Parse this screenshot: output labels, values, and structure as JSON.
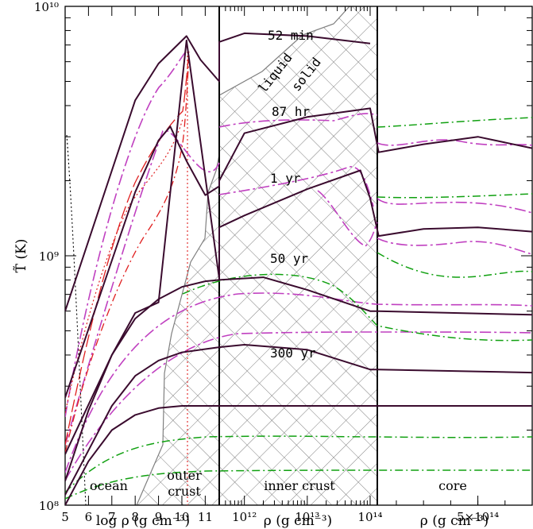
{
  "chart_data": {
    "type": "line",
    "title": "",
    "ylabel": "T̃ (K)",
    "yscale": "log",
    "ylim": [
      100000000.0,
      10000000000.0
    ],
    "y_ticks": [
      {
        "value": 100000000.0,
        "label": "10⁸"
      },
      {
        "value": 1000000000.0,
        "label": "10⁹"
      },
      {
        "value": 10000000000.0,
        "label": "10¹⁰"
      }
    ],
    "panels": [
      {
        "name": "ocean-outer",
        "xlabel": "log ρ (g cm⁻³)",
        "xscale": "linear",
        "xlim": [
          5,
          11.6
        ],
        "ticks": [
          {
            "value": 5,
            "label": "5"
          },
          {
            "value": 6,
            "label": "6"
          },
          {
            "value": 7,
            "label": "7"
          },
          {
            "value": 8,
            "label": "8"
          },
          {
            "value": 9,
            "label": "9"
          },
          {
            "value": 10,
            "label": "10"
          },
          {
            "value": 11,
            "label": "11"
          }
        ]
      },
      {
        "name": "inner-crust",
        "xlabel": "ρ (g cm⁻³)",
        "xscale": "log",
        "xlim": [
          398000000000.0,
          130000000000000.0
        ],
        "ticks": [
          {
            "value": 1000000000000.0,
            "label": "10¹²"
          },
          {
            "value": 10000000000000.0,
            "label": "10¹³"
          },
          {
            "value": 100000000000000.0,
            "label": "10¹⁴"
          }
        ]
      },
      {
        "name": "core",
        "xlabel": "ρ (g cm⁻³)",
        "xscale": "linear",
        "xlim": [
          130000000000000.0,
          700000000000000.0
        ],
        "ticks": [
          {
            "value": 500000000000000.0,
            "label": "5×10¹⁴"
          }
        ]
      }
    ],
    "regions": [
      "ocean",
      "outer crust",
      "inner crust",
      "core"
    ],
    "annotations": [
      "52 min",
      "87 hr",
      "1 yr",
      "50 yr",
      "300 yr",
      "liquid",
      "solid"
    ],
    "colors": {
      "main": "#3a0b2e",
      "magenta": "#c040c0",
      "green": "#10a010",
      "red": "#e02020",
      "hatch": "#808080"
    },
    "series": [
      {
        "time": "52 min",
        "style": "solid",
        "points": [
          [
            5,
            600000000.0
          ],
          [
            8,
            4200000000.0
          ],
          [
            9,
            5900000000.0
          ],
          [
            10.2,
            7600000000.0
          ],
          [
            10.8,
            6100000000.0
          ],
          [
            11.6,
            5000000000.0
          ],
          [
            398000000000.0,
            7200000000.0
          ],
          [
            1000000000000.0,
            7800000000.0
          ],
          [
            10000000000000.0,
            7600000000.0
          ],
          [
            100000000000000.0,
            7100000000.0
          ]
        ]
      },
      {
        "time": "87 hr",
        "style": "solid",
        "points": [
          [
            5,
            270000000.0
          ],
          [
            8,
            1800000000.0
          ],
          [
            9,
            2900000000.0
          ],
          [
            9.5,
            3300000000.0
          ],
          [
            10.2,
            2400000000.0
          ],
          [
            11,
            1750000000.0
          ],
          [
            11.6,
            1900000000.0
          ],
          [
            398000000000.0,
            2000000000.0
          ],
          [
            1000000000000.0,
            3100000000.0
          ],
          [
            10000000000000.0,
            3600000000.0
          ],
          [
            100000000000000.0,
            3900000000.0
          ],
          [
            135000000000000.0,
            2600000000.0
          ],
          [
            300000000000000.0,
            2800000000.0
          ],
          [
            500000000000000.0,
            3000000000.0
          ],
          [
            700000000000000.0,
            2700000000.0
          ]
        ]
      },
      {
        "time": "1 yr",
        "style": "solid",
        "points": [
          [
            5,
            160000000.0
          ],
          [
            7,
            400000000.0
          ],
          [
            8,
            590000000.0
          ],
          [
            9,
            650000000.0
          ],
          [
            10.2,
            7300000000.0
          ],
          [
            11.6,
            810000000.0
          ],
          [
            398000000000.0,
            1300000000.0
          ],
          [
            1000000000000.0,
            1450000000.0
          ],
          [
            10000000000000.0,
            1850000000.0
          ],
          [
            70000000000000.0,
            2200000000.0
          ],
          [
            100000000000000.0,
            1700000000.0
          ],
          [
            135000000000000.0,
            1200000000.0
          ],
          [
            300000000000000.0,
            1280000000.0
          ],
          [
            500000000000000.0,
            1300000000.0
          ],
          [
            700000000000000.0,
            1250000000.0
          ]
        ]
      },
      {
        "time": "50 yr",
        "style": "solid",
        "points": [
          [
            5,
            125000000.0
          ],
          [
            6,
            240000000.0
          ],
          [
            7,
            400000000.0
          ],
          [
            8,
            560000000.0
          ],
          [
            9,
            670000000.0
          ],
          [
            10,
            750000000.0
          ],
          [
            11,
            790000000.0
          ],
          [
            398000000000.0,
            800000000.0
          ],
          [
            2000000000000.0,
            820000000.0
          ],
          [
            10000000000000.0,
            730000000.0
          ],
          [
            100000000000000.0,
            600000000.0
          ],
          [
            135000000000000.0,
            600000000.0
          ],
          [
            700000000000000.0,
            580000000.0
          ]
        ]
      },
      {
        "time": "300 yr",
        "style": "solid",
        "points": [
          [
            5,
            100000000.0
          ],
          [
            6,
            150000000.0
          ],
          [
            7,
            200000000.0
          ],
          [
            8,
            230000000.0
          ],
          [
            9,
            245000000.0
          ],
          [
            10,
            250000000.0
          ],
          [
            11.6,
            250000000.0
          ],
          [
            1000000000000.0,
            250000000.0
          ],
          [
            100000000000000.0,
            250000000.0
          ],
          [
            700000000000000.0,
            250000000.0
          ]
        ]
      },
      {
        "time": "300 yr (upper)",
        "style": "solid",
        "points": [
          [
            5,
            110000000.0
          ],
          [
            7,
            250000000.0
          ],
          [
            8,
            330000000.0
          ],
          [
            9,
            380000000.0
          ],
          [
            10,
            410000000.0
          ],
          [
            11.6,
            430000000.0
          ],
          [
            1000000000000.0,
            440000000.0
          ],
          [
            10000000000000.0,
            420000000.0
          ],
          [
            100000000000000.0,
            350000000.0
          ],
          [
            135000000000000.0,
            350000000.0
          ],
          [
            700000000000000.0,
            340000000.0
          ]
        ]
      }
    ]
  }
}
